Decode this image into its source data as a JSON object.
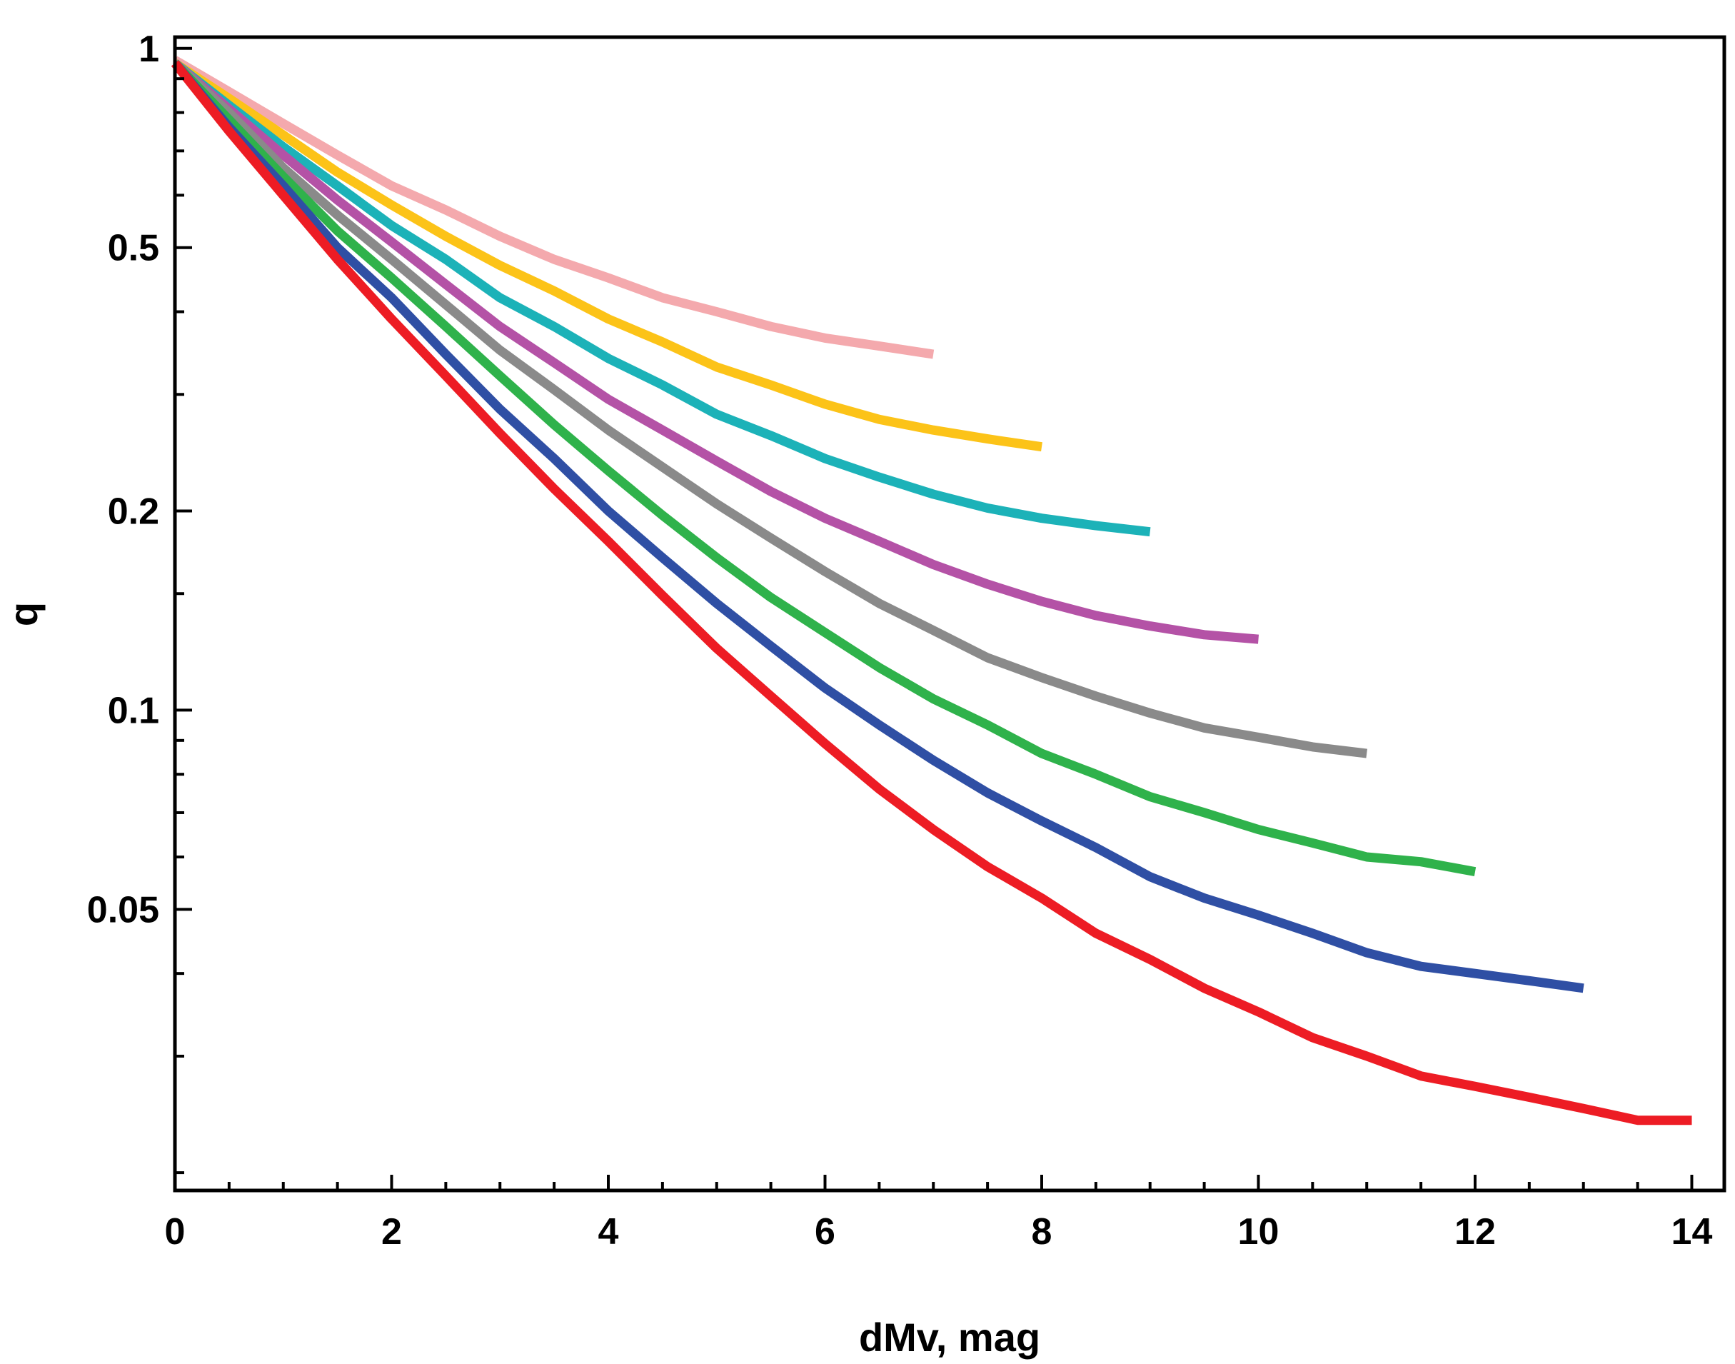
{
  "chart_data": {
    "type": "line",
    "title": "",
    "xlabel": "dMv, mag",
    "ylabel": "q",
    "xlim": [
      0,
      14.3
    ],
    "ylim": [
      0.0188,
      1.04
    ],
    "yscale": "log",
    "grid": false,
    "legend": "none",
    "x_ticks": [
      0,
      2,
      4,
      6,
      8,
      10,
      12,
      14
    ],
    "x_tick_labels": [
      "0",
      "2",
      "4",
      "6",
      "8",
      "10",
      "12",
      "14"
    ],
    "y_ticks": [
      1,
      0.5,
      0.2,
      0.1,
      0.05
    ],
    "y_tick_labels": [
      "1",
      "0.5",
      "0.2",
      "0.1",
      "0.05"
    ],
    "y_minor_ticks": [
      0.9,
      0.8,
      0.7,
      0.6,
      0.4,
      0.3,
      0.15,
      0.09,
      0.08,
      0.07,
      0.06,
      0.04,
      0.03,
      0.02
    ],
    "series": [
      {
        "color": "#f4a9ad",
        "x": [
          0,
          0.5,
          1,
          1.5,
          2,
          2.5,
          3,
          3.5,
          4,
          4.5,
          5,
          5.5,
          6,
          6.5,
          7
        ],
        "y": [
          0.96,
          0.86,
          0.77,
          0.69,
          0.62,
          0.57,
          0.52,
          0.48,
          0.45,
          0.42,
          0.4,
          0.38,
          0.365,
          0.355,
          0.345
        ]
      },
      {
        "color": "#fcc318",
        "x": [
          0,
          0.5,
          1,
          1.5,
          2,
          2.5,
          3,
          3.5,
          4,
          4.5,
          5,
          5.5,
          6,
          6.5,
          7,
          7.5,
          8
        ],
        "y": [
          0.95,
          0.84,
          0.74,
          0.65,
          0.58,
          0.52,
          0.47,
          0.43,
          0.39,
          0.36,
          0.33,
          0.31,
          0.29,
          0.275,
          0.265,
          0.257,
          0.25
        ]
      },
      {
        "color": "#1cb2b8",
        "x": [
          0,
          0.5,
          1,
          1.5,
          2,
          2.5,
          3,
          3.5,
          4,
          4.5,
          5,
          5.5,
          6,
          6.5,
          7,
          7.5,
          8,
          8.5,
          9
        ],
        "y": [
          0.95,
          0.82,
          0.71,
          0.62,
          0.54,
          0.48,
          0.42,
          0.38,
          0.34,
          0.31,
          0.28,
          0.26,
          0.24,
          0.225,
          0.212,
          0.202,
          0.195,
          0.19,
          0.186
        ]
      },
      {
        "color": "#b452a6",
        "x": [
          0,
          0.5,
          1,
          1.5,
          2,
          2.5,
          3,
          3.5,
          4,
          4.5,
          5,
          5.5,
          6,
          6.5,
          7,
          7.5,
          8,
          8.5,
          9,
          9.5,
          10
        ],
        "y": [
          0.95,
          0.81,
          0.69,
          0.59,
          0.51,
          0.44,
          0.38,
          0.335,
          0.295,
          0.265,
          0.238,
          0.214,
          0.195,
          0.18,
          0.166,
          0.155,
          0.146,
          0.139,
          0.134,
          0.13,
          0.128
        ]
      },
      {
        "color": "#8a8a8a",
        "x": [
          0,
          0.5,
          1,
          1.5,
          2,
          2.5,
          3,
          3.5,
          4,
          4.5,
          5,
          5.5,
          6,
          6.5,
          7,
          7.5,
          8,
          8.5,
          9,
          9.5,
          10,
          10.5,
          11
        ],
        "y": [
          0.95,
          0.8,
          0.66,
          0.56,
          0.48,
          0.41,
          0.35,
          0.305,
          0.265,
          0.233,
          0.205,
          0.182,
          0.162,
          0.145,
          0.132,
          0.12,
          0.112,
          0.105,
          0.099,
          0.094,
          0.091,
          0.088,
          0.086
        ]
      },
      {
        "color": "#2fb24b",
        "x": [
          0,
          0.5,
          1,
          1.5,
          2,
          2.5,
          3,
          3.5,
          4,
          4.5,
          5,
          5.5,
          6,
          6.5,
          7,
          7.5,
          8,
          8.5,
          9,
          9.5,
          10,
          10.5,
          11,
          11.5,
          12
        ],
        "y": [
          0.95,
          0.78,
          0.64,
          0.53,
          0.45,
          0.38,
          0.32,
          0.27,
          0.23,
          0.197,
          0.17,
          0.148,
          0.131,
          0.116,
          0.104,
          0.095,
          0.086,
          0.08,
          0.074,
          0.07,
          0.066,
          0.063,
          0.06,
          0.059,
          0.057
        ]
      },
      {
        "color": "#2f4fa4",
        "x": [
          0,
          0.5,
          1,
          1.5,
          2,
          2.5,
          3,
          3.5,
          4,
          4.5,
          5,
          5.5,
          6,
          6.5,
          7,
          7.5,
          8,
          8.5,
          9,
          9.5,
          10,
          10.5,
          11,
          11.5,
          12,
          12.5,
          13
        ],
        "y": [
          0.95,
          0.76,
          0.62,
          0.5,
          0.42,
          0.345,
          0.285,
          0.24,
          0.2,
          0.17,
          0.145,
          0.125,
          0.108,
          0.095,
          0.084,
          0.075,
          0.068,
          0.062,
          0.056,
          0.052,
          0.049,
          0.046,
          0.043,
          0.041,
          0.04,
          0.039,
          0.038
        ]
      },
      {
        "color": "#ed1c24",
        "x": [
          0,
          0.5,
          1,
          1.5,
          2,
          2.5,
          3,
          3.5,
          4,
          4.5,
          5,
          5.5,
          6,
          6.5,
          7,
          7.5,
          8,
          8.5,
          9,
          9.5,
          10,
          10.5,
          11,
          11.5,
          12,
          12.5,
          13,
          13.5,
          14
        ],
        "y": [
          0.95,
          0.75,
          0.6,
          0.48,
          0.39,
          0.32,
          0.262,
          0.216,
          0.18,
          0.149,
          0.124,
          0.105,
          0.089,
          0.076,
          0.066,
          0.058,
          0.052,
          0.046,
          0.042,
          0.038,
          0.035,
          0.032,
          0.03,
          0.028,
          0.027,
          0.026,
          0.025,
          0.024,
          0.024
        ]
      }
    ]
  }
}
